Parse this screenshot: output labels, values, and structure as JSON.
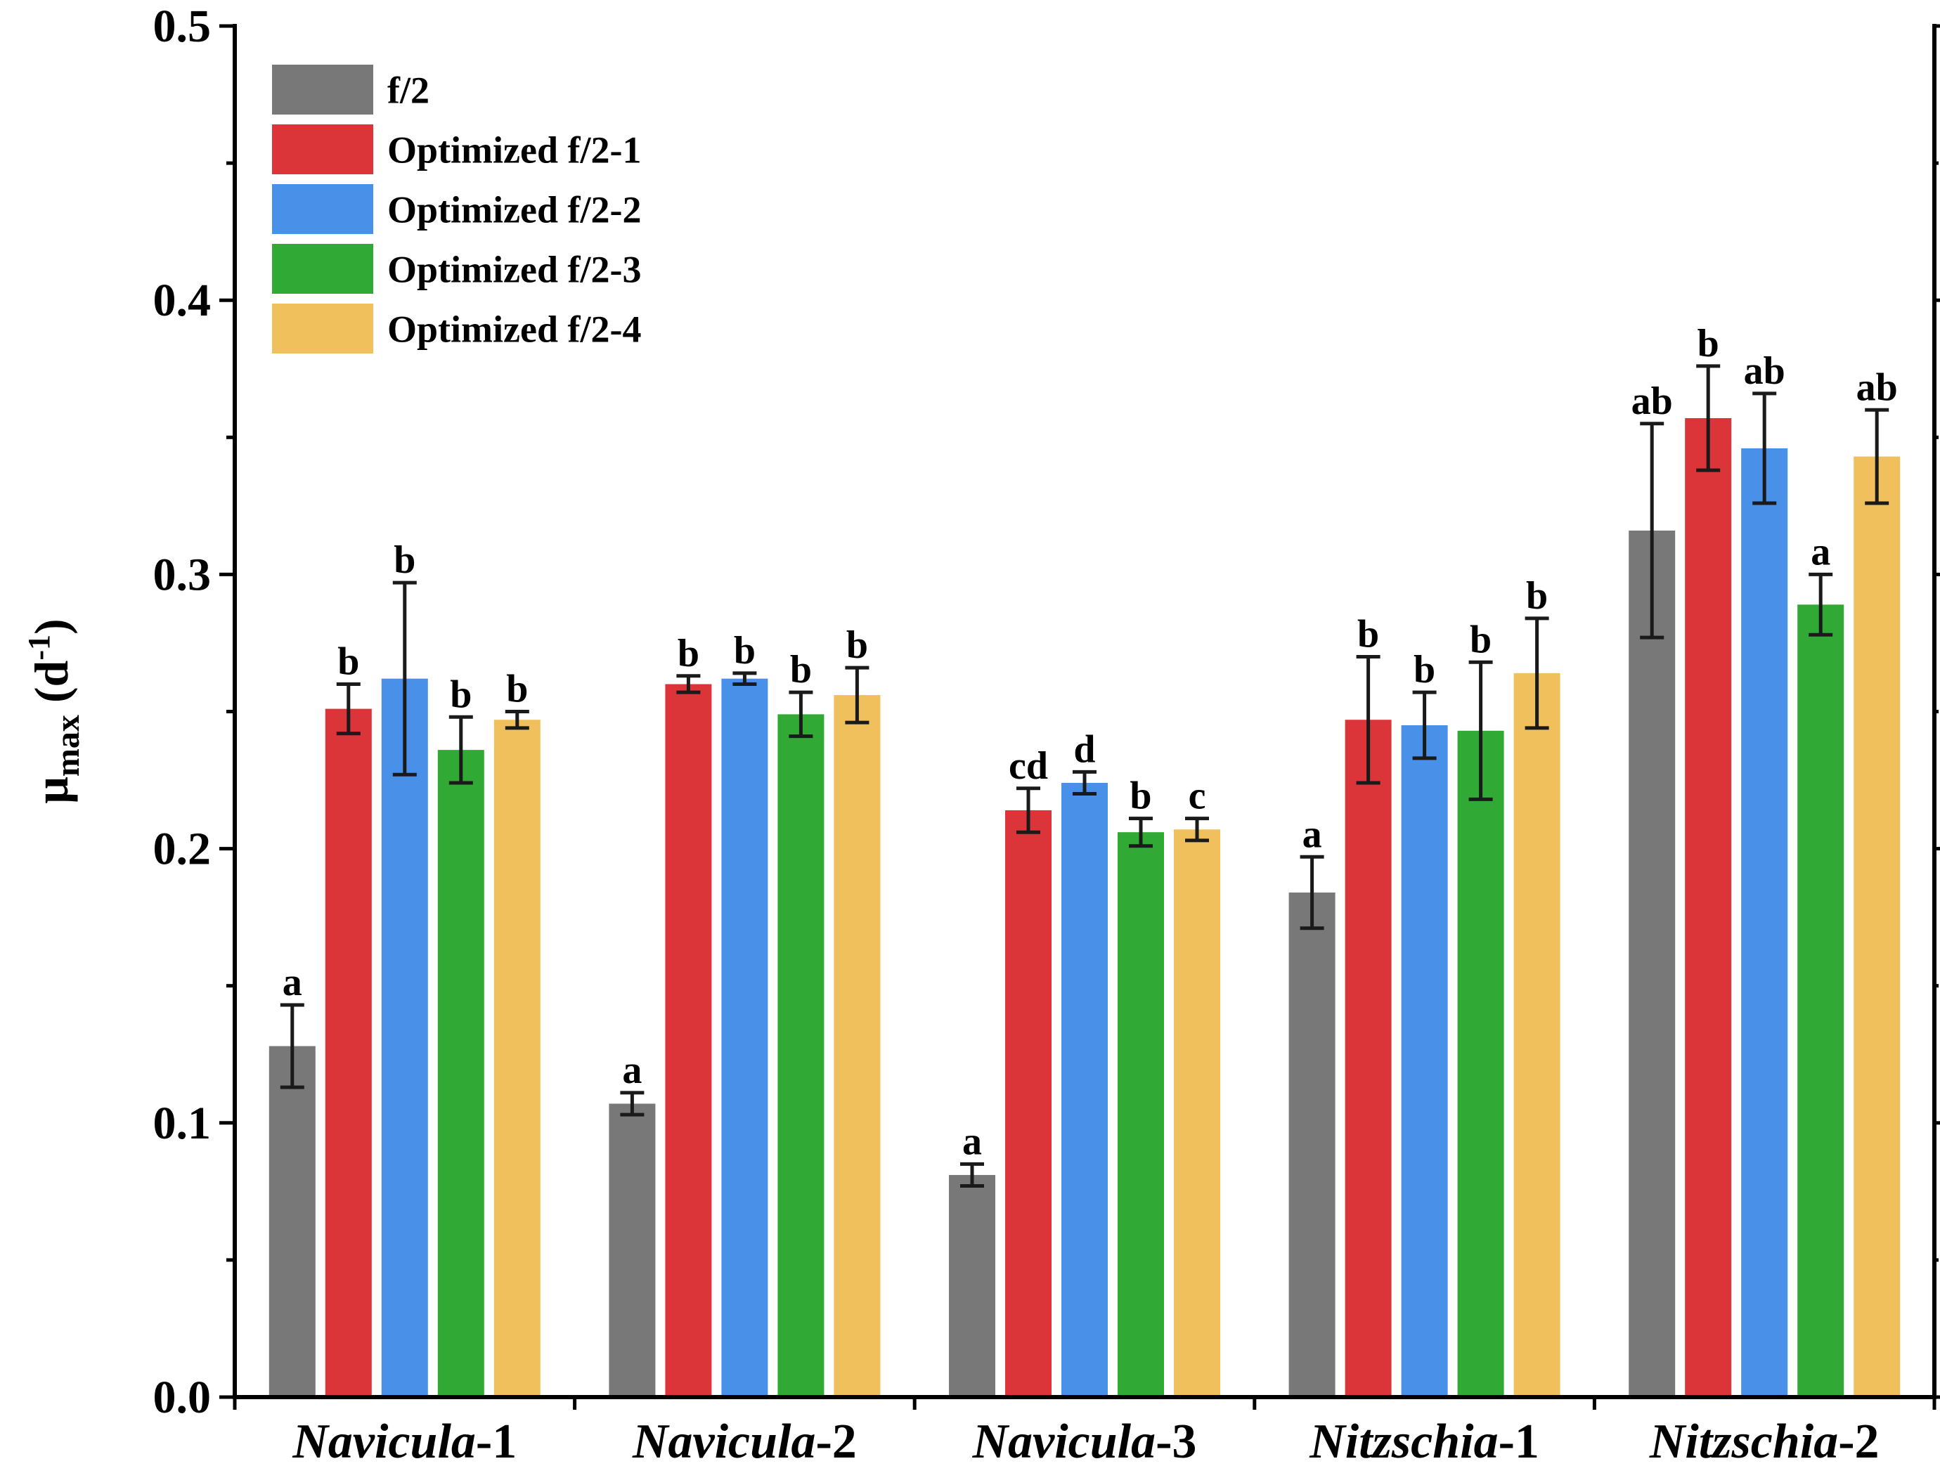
{
  "chart_data": {
    "type": "bar",
    "title": "",
    "xlabel": "",
    "ylabel": {
      "main": "μ",
      "sub": "max",
      "unit_prefix": " (d",
      "unit_sup": "-1",
      "unit_suffix": ")"
    },
    "ylim": [
      0,
      0.5
    ],
    "yticks": [
      "0.0",
      "0.1",
      "0.2",
      "0.3",
      "0.4",
      "0.5"
    ],
    "legend_position": "top-left",
    "categories": [
      {
        "italic": "Navicula",
        "suffix": "-1"
      },
      {
        "italic": "Navicula",
        "suffix": "-2"
      },
      {
        "italic": "Navicula",
        "suffix": "-3"
      },
      {
        "italic": "Nitzschia",
        "suffix": "-1"
      },
      {
        "italic": "Nitzschia",
        "suffix": "-2"
      }
    ],
    "series": [
      {
        "name": "f/2",
        "color": "#787878",
        "values": [
          0.128,
          0.107,
          0.081,
          0.184,
          0.316
        ],
        "errors": [
          0.015,
          0.004,
          0.004,
          0.013,
          0.039
        ],
        "labels": [
          "a",
          "a",
          "a",
          "a",
          "ab"
        ]
      },
      {
        "name": "Optimized f/2-1",
        "color": "#dc3539",
        "values": [
          0.251,
          0.26,
          0.214,
          0.247,
          0.357
        ],
        "errors": [
          0.009,
          0.003,
          0.008,
          0.023,
          0.019
        ],
        "labels": [
          "b",
          "b",
          "cd",
          "b",
          "b"
        ]
      },
      {
        "name": "Optimized f/2-2",
        "color": "#4990e8",
        "values": [
          0.262,
          0.262,
          0.224,
          0.245,
          0.346
        ],
        "errors": [
          0.035,
          0.002,
          0.004,
          0.012,
          0.02
        ],
        "labels": [
          "b",
          "b",
          "d",
          "b",
          "ab"
        ]
      },
      {
        "name": "Optimized f/2-3",
        "color": "#31a935",
        "values": [
          0.236,
          0.249,
          0.206,
          0.243,
          0.289
        ],
        "errors": [
          0.012,
          0.008,
          0.005,
          0.025,
          0.011
        ],
        "labels": [
          "b",
          "b",
          "b",
          "b",
          "a"
        ]
      },
      {
        "name": "Optimized f/2-4",
        "color": "#f0c05d",
        "values": [
          0.247,
          0.256,
          0.207,
          0.264,
          0.343
        ],
        "errors": [
          0.003,
          0.01,
          0.004,
          0.02,
          0.017
        ],
        "labels": [
          "b",
          "b",
          "c",
          "b",
          "ab"
        ]
      }
    ]
  }
}
